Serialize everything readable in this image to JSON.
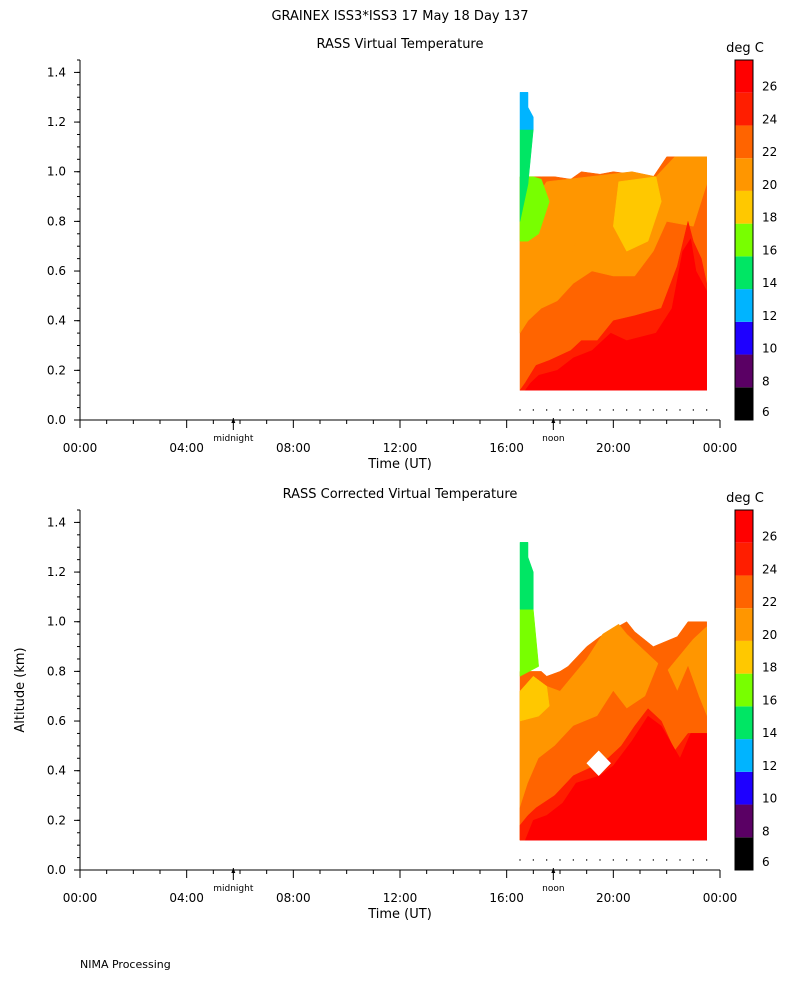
{
  "figure_title": "GRAINEX ISS3*ISS3  17 May 18 Day 137",
  "footer": "NIMA Processing",
  "colorbar": {
    "unit": "deg C",
    "ticks": [
      "6",
      "8",
      "10",
      "12",
      "14",
      "16",
      "18",
      "20",
      "22",
      "24",
      "26"
    ],
    "colors": [
      "#000000",
      "#5a0064",
      "#1e00ff",
      "#00b4ff",
      "#00e664",
      "#78ff00",
      "#ffc800",
      "#ff9600",
      "#ff6400",
      "#ff1e00",
      "#ff0000"
    ]
  },
  "chart_data": [
    {
      "type": "heatmap",
      "title": "RASS Virtual Temperature",
      "xlabel": "Time (UT)",
      "ylabel": "",
      "xlim": [
        "00:00",
        "00:00"
      ],
      "x_ticks": [
        "00:00",
        "04:00",
        "08:00",
        "12:00",
        "16:00",
        "20:00",
        "00:00"
      ],
      "ylim": [
        0.0,
        1.45
      ],
      "y_ticks": [
        "0.0",
        "0.2",
        "0.4",
        "0.6",
        "0.8",
        "1.0",
        "1.2",
        "1.4"
      ],
      "markers": [
        {
          "label": "midnight",
          "time": "05:45"
        },
        {
          "label": "noon",
          "time": "17:45"
        }
      ],
      "colorbar_unit": "deg C",
      "z_levels": [
        6,
        8,
        10,
        12,
        14,
        16,
        18,
        20,
        22,
        24,
        26
      ],
      "data_time_range": [
        "16:30",
        "23:30"
      ],
      "data_altitude_range_km": [
        0.12,
        1.32
      ],
      "regions": [
        {
          "temp_range": "12-14",
          "altitude_km": [
            1.17,
            1.32
          ],
          "time": [
            "16:30",
            "17:00"
          ]
        },
        {
          "temp_range": "14-16",
          "altitude_km": [
            0.78,
            1.17
          ],
          "time": [
            "16:30",
            "17:00"
          ]
        },
        {
          "temp_range": "16-18",
          "altitude_km": [
            0.78,
            0.97
          ],
          "time": [
            "17:00",
            "17:30"
          ]
        },
        {
          "temp_range": "18-20",
          "altitude_km": [
            0.75,
            1.0
          ],
          "time": [
            "20:30",
            "21:30"
          ]
        },
        {
          "temp_range": "20-22",
          "altitude_km": [
            0.6,
            1.0
          ],
          "time": [
            "17:00",
            "22:00"
          ]
        },
        {
          "temp_range": "22-24",
          "altitude_km": [
            0.25,
            1.06
          ],
          "time": [
            "16:30",
            "23:30"
          ]
        },
        {
          "temp_range": "24-26",
          "altitude_km": [
            0.12,
            0.8
          ],
          "time": [
            "16:30",
            "23:30"
          ]
        }
      ]
    },
    {
      "type": "heatmap",
      "title": "RASS Corrected Virtual Temperature",
      "xlabel": "Time (UT)",
      "ylabel": "Altitude (km)",
      "xlim": [
        "00:00",
        "00:00"
      ],
      "x_ticks": [
        "00:00",
        "04:00",
        "08:00",
        "12:00",
        "16:00",
        "20:00",
        "00:00"
      ],
      "ylim": [
        0.0,
        1.45
      ],
      "y_ticks": [
        "0.0",
        "0.2",
        "0.4",
        "0.6",
        "0.8",
        "1.0",
        "1.2",
        "1.4"
      ],
      "markers": [
        {
          "label": "midnight",
          "time": "05:45"
        },
        {
          "label": "noon",
          "time": "17:45"
        }
      ],
      "colorbar_unit": "deg C",
      "z_levels": [
        6,
        8,
        10,
        12,
        14,
        16,
        18,
        20,
        22,
        24,
        26
      ],
      "data_time_range": [
        "16:30",
        "23:30"
      ],
      "data_altitude_range_km": [
        0.12,
        1.32
      ],
      "regions": [
        {
          "temp_range": "14-16",
          "altitude_km": [
            1.05,
            1.32
          ],
          "time": [
            "16:30",
            "17:00"
          ]
        },
        {
          "temp_range": "16-18",
          "altitude_km": [
            0.78,
            1.05
          ],
          "time": [
            "16:30",
            "17:00"
          ]
        },
        {
          "temp_range": "18-20",
          "altitude_km": [
            0.65,
            0.9
          ],
          "time": [
            "16:30",
            "17:30"
          ]
        },
        {
          "temp_range": "20-22",
          "altitude_km": [
            0.25,
            1.0
          ],
          "time": [
            "16:30",
            "23:30"
          ]
        },
        {
          "temp_range": "22-24",
          "altitude_km": [
            0.18,
            1.0
          ],
          "time": [
            "16:30",
            "23:30"
          ]
        },
        {
          "temp_range": "24-26",
          "altitude_km": [
            0.12,
            0.6
          ],
          "time": [
            "16:30",
            "23:30"
          ]
        },
        {
          "temp_range": "no data",
          "altitude_km": [
            0.38,
            0.48
          ],
          "time": [
            "19:15",
            "19:45"
          ]
        }
      ]
    }
  ]
}
